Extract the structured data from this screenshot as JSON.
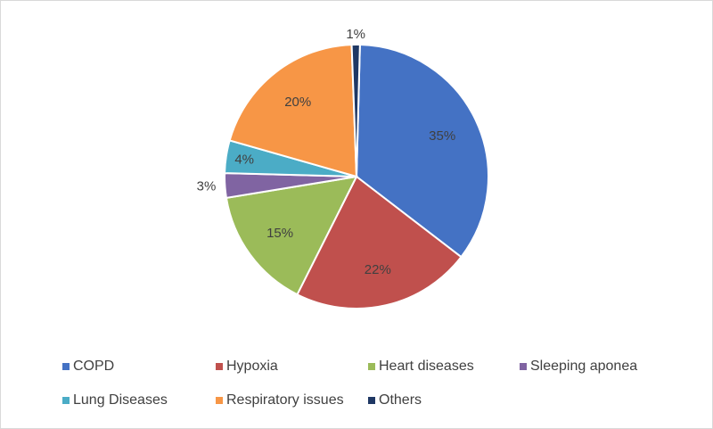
{
  "chart_data": {
    "type": "pie",
    "title": "",
    "unit": "%",
    "slices": [
      {
        "label": "COPD",
        "value": 35,
        "display": "35%",
        "color": "#4472c4"
      },
      {
        "label": "Hypoxia",
        "value": 22,
        "display": "22%",
        "color": "#c0504d"
      },
      {
        "label": "Heart diseases",
        "value": 15,
        "display": "15%",
        "color": "#9bbb59"
      },
      {
        "label": "Sleeping aponea",
        "value": 3,
        "display": "3%",
        "color": "#8064a2"
      },
      {
        "label": "Lung Diseases",
        "value": 4,
        "display": "4%",
        "color": "#4bacc6"
      },
      {
        "label": "Respiratory issues",
        "value": 20,
        "display": "20%",
        "color": "#f79646"
      },
      {
        "label": "Others",
        "value": 1,
        "display": "1%",
        "color": "#1f3864"
      }
    ],
    "legend_position": "bottom"
  }
}
